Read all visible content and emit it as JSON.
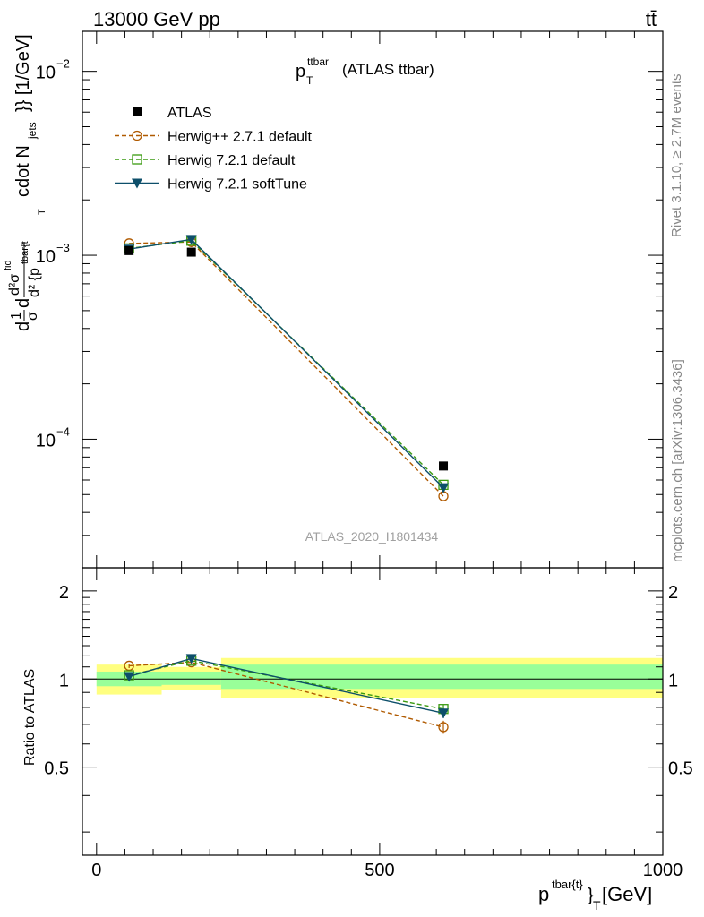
{
  "header": {
    "energy_label": "13000 GeV pp",
    "process_label": "tt̄"
  },
  "side_labels": {
    "rivet": "Rivet 3.1.10, ≥ 2.7M events",
    "mcplots": "mcplots.cern.ch [arXiv:1306.3436]"
  },
  "watermark": "ATLAS_2020_I1801434",
  "chart_data": [
    {
      "panel": "main",
      "type": "scatter",
      "title": {
        "main": "p",
        "sub": "T",
        "sup": "ttbar",
        "suffix": "(ATLAS ttbar)"
      },
      "ylabel": {
        "prefix": "d",
        "frac_num": "1",
        "frac_den": "σ",
        "part2": "d",
        "frac2_num": "d²σ",
        "frac2_num_sup": "fid",
        "frac2_den": "d² {p",
        "frac2_den_sup": "tbar{t",
        "frac2_den_sub": "T",
        "suffix": "cdot N",
        "suffix_sub": "jets",
        "units": "}} [1/GeV]"
      },
      "xlim": [
        -25,
        1000
      ],
      "ylim": [
        2e-05,
        0.0165
      ],
      "yscale": "log",
      "yticks": [
        {
          "value": 0.0001,
          "base": "10",
          "exp": "−4"
        },
        {
          "value": 0.001,
          "base": "10",
          "exp": "−3"
        },
        {
          "value": 0.01,
          "base": "10",
          "exp": "−2"
        }
      ],
      "legend_position": "top-left",
      "series": [
        {
          "name": "ATLAS",
          "color": "#000000",
          "marker": "square",
          "line": "none",
          "x": [
            57.5,
            167.5,
            612.5
          ],
          "y": [
            0.00106,
            0.00104,
            7.15e-05
          ]
        },
        {
          "name": "Herwig++ 2.7.1 default",
          "color": "#b05a00",
          "marker": "circle-open",
          "line": "dashed",
          "x": [
            57.5,
            167.5,
            612.5
          ],
          "y": [
            0.00116,
            0.00118,
            4.9e-05
          ]
        },
        {
          "name": "Herwig 7.2.1 default",
          "color": "#3a9a10",
          "marker": "square-open",
          "line": "dashed",
          "x": [
            57.5,
            167.5,
            612.5
          ],
          "y": [
            0.00109,
            0.0012,
            5.65e-05
          ]
        },
        {
          "name": "Herwig 7.2.1 softTune",
          "color": "#0d4f6a",
          "marker": "triangle-down",
          "line": "solid",
          "x": [
            57.5,
            167.5,
            612.5
          ],
          "y": [
            0.00108,
            0.00122,
            5.45e-05
          ]
        }
      ]
    },
    {
      "panel": "ratio",
      "type": "scatter",
      "ylabel": "Ratio to ATLAS",
      "xlabel": {
        "main": "p",
        "sup": "tbar{t}",
        "mid": "}",
        "sub": "T",
        "units": " [GeV]"
      },
      "xlim": [
        -25,
        1000
      ],
      "ylim": [
        0.25,
        2.4
      ],
      "yscale": "log",
      "xticks": [
        {
          "value": 0,
          "label": "0"
        },
        {
          "value": 500,
          "label": "500"
        },
        {
          "value": 1000,
          "label": "1000"
        }
      ],
      "yticks": [
        {
          "value": 0.5,
          "label": "0.5"
        },
        {
          "value": 1,
          "label": "1"
        },
        {
          "value": 2,
          "label": "2"
        }
      ],
      "bands": [
        {
          "x": [
            0,
            115
          ],
          "yellow": [
            0.885,
            1.12
          ],
          "green": [
            0.945,
            1.06
          ]
        },
        {
          "x": [
            115,
            220
          ],
          "yellow": [
            0.915,
            1.1
          ],
          "green": [
            0.955,
            1.06
          ]
        },
        {
          "x": [
            220,
            1000
          ],
          "yellow": [
            0.86,
            1.18
          ],
          "green": [
            0.925,
            1.12
          ]
        }
      ],
      "band_colors": {
        "yellow": "#ffff80",
        "green": "#99ff99"
      },
      "series": [
        {
          "name": "Herwig++ 2.7.1 default",
          "color": "#b05a00",
          "marker": "circle-open",
          "line": "dashed",
          "x": [
            57.5,
            167.5,
            612.5
          ],
          "y": [
            1.11,
            1.14,
            0.685
          ],
          "err": [
            0.02,
            0.015,
            0.035
          ]
        },
        {
          "name": "Herwig 7.2.1 default",
          "color": "#3a9a10",
          "marker": "square-open",
          "line": "dashed",
          "x": [
            57.5,
            167.5,
            612.5
          ],
          "y": [
            1.03,
            1.155,
            0.79
          ],
          "err": [
            0.02,
            0.015,
            0.03
          ]
        },
        {
          "name": "Herwig 7.2.1 softTune",
          "color": "#0d4f6a",
          "marker": "triangle-down",
          "line": "solid",
          "x": [
            57.5,
            167.5,
            612.5
          ],
          "y": [
            1.02,
            1.175,
            0.765
          ],
          "err": [
            0.02,
            0.015,
            0.03
          ]
        }
      ]
    }
  ]
}
